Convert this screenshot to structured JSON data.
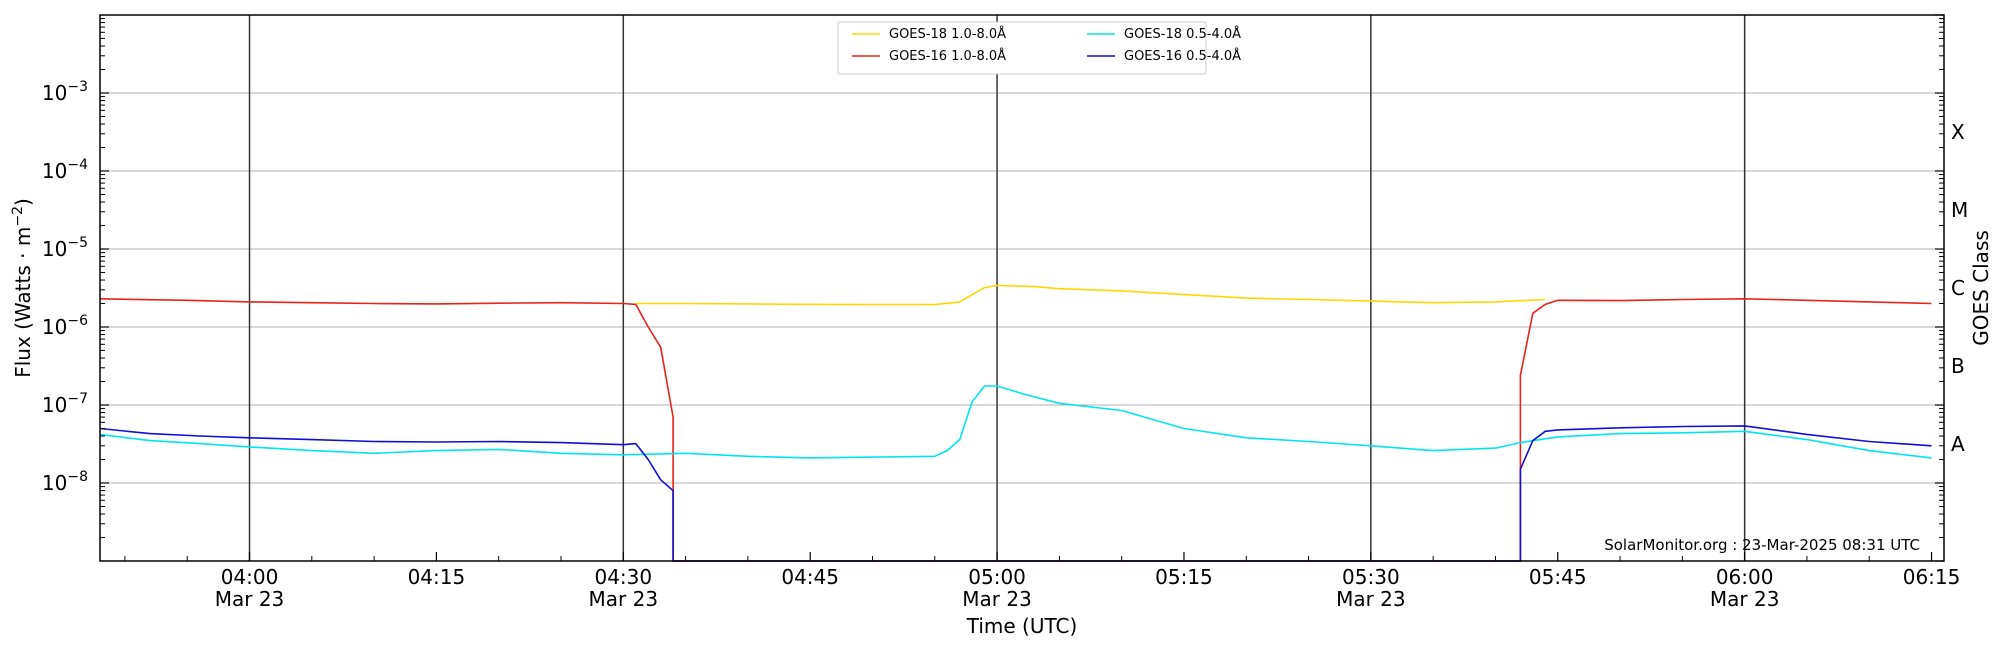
{
  "chart_data": {
    "type": "line",
    "xlabel": "Time (UTC)",
    "ylabel": "Flux (Watts · m",
    "ylabel_sup": "−2",
    "ylabel_close": ")",
    "right_axis_label": "GOES Class",
    "y_scale": "log",
    "ylim": [
      1e-09,
      0.01
    ],
    "xlim": [
      "03:48",
      "06:16"
    ],
    "grid": "horizontal at decades; vertical lines every 30 min",
    "legend_position": "top-center",
    "y_ticks": [
      {
        "base": "10",
        "exp": "−8",
        "value": 1e-08
      },
      {
        "base": "10",
        "exp": "−7",
        "value": 1e-07
      },
      {
        "base": "10",
        "exp": "−6",
        "value": 1e-06
      },
      {
        "base": "10",
        "exp": "−5",
        "value": 1e-05
      },
      {
        "base": "10",
        "exp": "−4",
        "value": 0.0001
      },
      {
        "base": "10",
        "exp": "−3",
        "value": 0.001
      }
    ],
    "x_ticks": [
      {
        "time": "04:00",
        "line1": "04:00",
        "line2": "Mar 23"
      },
      {
        "time": "04:15",
        "line1": "04:15",
        "line2": ""
      },
      {
        "time": "04:30",
        "line1": "04:30",
        "line2": "Mar 23"
      },
      {
        "time": "04:45",
        "line1": "04:45",
        "line2": ""
      },
      {
        "time": "05:00",
        "line1": "05:00",
        "line2": "Mar 23"
      },
      {
        "time": "05:15",
        "line1": "05:15",
        "line2": ""
      },
      {
        "time": "05:30",
        "line1": "05:30",
        "line2": "Mar 23"
      },
      {
        "time": "05:45",
        "line1": "05:45",
        "line2": ""
      },
      {
        "time": "06:00",
        "line1": "06:00",
        "line2": "Mar 23"
      },
      {
        "time": "06:15",
        "line1": "06:15",
        "line2": ""
      }
    ],
    "goes_classes": [
      {
        "label": "A",
        "value": 3.16e-08
      },
      {
        "label": "B",
        "value": 3.16e-07
      },
      {
        "label": "C",
        "value": 3.16e-06
      },
      {
        "label": "M",
        "value": 3.16e-05
      },
      {
        "label": "X",
        "value": 0.000316
      }
    ],
    "series": [
      {
        "name": "GOES-18 1.0-8.0",
        "angstrom": "Å",
        "color": "#ffd700",
        "points": [
          [
            "04:31",
            2e-06
          ],
          [
            "04:35",
            2e-06
          ],
          [
            "04:40",
            1.98e-06
          ],
          [
            "04:45",
            1.95e-06
          ],
          [
            "04:50",
            1.94e-06
          ],
          [
            "04:55",
            1.94e-06
          ],
          [
            "04:57",
            2.1e-06
          ],
          [
            "04:58",
            2.6e-06
          ],
          [
            "04:59",
            3.2e-06
          ],
          [
            "05:00",
            3.4e-06
          ],
          [
            "05:03",
            3.3e-06
          ],
          [
            "05:05",
            3.1e-06
          ],
          [
            "05:10",
            2.9e-06
          ],
          [
            "05:15",
            2.6e-06
          ],
          [
            "05:20",
            2.35e-06
          ],
          [
            "05:25",
            2.25e-06
          ],
          [
            "05:30",
            2.15e-06
          ],
          [
            "05:35",
            2.05e-06
          ],
          [
            "05:40",
            2.1e-06
          ],
          [
            "05:44",
            2.25e-06
          ]
        ]
      },
      {
        "name": "GOES-16 1.0-8.0",
        "angstrom": "Å",
        "color": "#e8221a",
        "points": [
          [
            "03:48",
            2.3e-06
          ],
          [
            "03:55",
            2.2e-06
          ],
          [
            "04:00",
            2.1e-06
          ],
          [
            "04:05",
            2.05e-06
          ],
          [
            "04:10",
            2e-06
          ],
          [
            "04:15",
            1.98e-06
          ],
          [
            "04:20",
            2.02e-06
          ],
          [
            "04:25",
            2.05e-06
          ],
          [
            "04:30",
            2e-06
          ],
          [
            "04:31",
            1.95e-06
          ],
          [
            "04:32",
            1e-06
          ],
          [
            "04:33",
            5.5e-07
          ],
          [
            "04:34",
            7e-08
          ],
          [
            "04:34",
            1e-09
          ],
          [
            "05:42",
            1e-09
          ],
          [
            "05:42",
            2.4e-07
          ],
          [
            "05:43",
            1.5e-06
          ],
          [
            "05:44",
            1.95e-06
          ],
          [
            "05:45",
            2.2e-06
          ],
          [
            "05:50",
            2.18e-06
          ],
          [
            "05:55",
            2.25e-06
          ],
          [
            "06:00",
            2.3e-06
          ],
          [
            "06:05",
            2.2e-06
          ],
          [
            "06:10",
            2.1e-06
          ],
          [
            "06:15",
            2e-06
          ]
        ]
      },
      {
        "name": "GOES-18 0.5-4.0",
        "angstrom": "Å",
        "color": "#00e5ee",
        "points": [
          [
            "03:48",
            4.2e-08
          ],
          [
            "03:52",
            3.5e-08
          ],
          [
            "03:56",
            3.2e-08
          ],
          [
            "04:00",
            2.9e-08
          ],
          [
            "04:05",
            2.6e-08
          ],
          [
            "04:10",
            2.4e-08
          ],
          [
            "04:15",
            2.6e-08
          ],
          [
            "04:20",
            2.7e-08
          ],
          [
            "04:25",
            2.4e-08
          ],
          [
            "04:30",
            2.3e-08
          ],
          [
            "04:35",
            2.4e-08
          ],
          [
            "04:40",
            2.2e-08
          ],
          [
            "04:45",
            2.1e-08
          ],
          [
            "04:50",
            2.15e-08
          ],
          [
            "04:55",
            2.2e-08
          ],
          [
            "04:56",
            2.6e-08
          ],
          [
            "04:57",
            3.6e-08
          ],
          [
            "04:58",
            1.1e-07
          ],
          [
            "04:59",
            1.75e-07
          ],
          [
            "05:00",
            1.75e-07
          ],
          [
            "05:02",
            1.4e-07
          ],
          [
            "05:05",
            1.05e-07
          ],
          [
            "05:10",
            8.5e-08
          ],
          [
            "05:15",
            5e-08
          ],
          [
            "05:20",
            3.8e-08
          ],
          [
            "05:25",
            3.4e-08
          ],
          [
            "05:30",
            3e-08
          ],
          [
            "05:35",
            2.6e-08
          ],
          [
            "05:40",
            2.8e-08
          ],
          [
            "05:42",
            3.3e-08
          ],
          [
            "05:45",
            3.9e-08
          ],
          [
            "05:50",
            4.3e-08
          ],
          [
            "05:55",
            4.4e-08
          ],
          [
            "06:00",
            4.6e-08
          ],
          [
            "06:05",
            3.6e-08
          ],
          [
            "06:10",
            2.6e-08
          ],
          [
            "06:15",
            2.1e-08
          ]
        ]
      },
      {
        "name": "GOES-16 0.5-4.0",
        "angstrom": "Å",
        "color": "#0f0fd6",
        "points": [
          [
            "03:48",
            5e-08
          ],
          [
            "03:52",
            4.3e-08
          ],
          [
            "03:56",
            4e-08
          ],
          [
            "04:00",
            3.8e-08
          ],
          [
            "04:05",
            3.6e-08
          ],
          [
            "04:10",
            3.4e-08
          ],
          [
            "04:15",
            3.35e-08
          ],
          [
            "04:20",
            3.4e-08
          ],
          [
            "04:25",
            3.3e-08
          ],
          [
            "04:30",
            3.1e-08
          ],
          [
            "04:31",
            3.2e-08
          ],
          [
            "04:32",
            2e-08
          ],
          [
            "04:33",
            1.1e-08
          ],
          [
            "04:34",
            8e-09
          ],
          [
            "04:34",
            1e-09
          ],
          [
            "05:42",
            1e-09
          ],
          [
            "05:42",
            1.5e-08
          ],
          [
            "05:43",
            3.5e-08
          ],
          [
            "05:44",
            4.6e-08
          ],
          [
            "05:45",
            4.8e-08
          ],
          [
            "05:50",
            5.1e-08
          ],
          [
            "05:55",
            5.3e-08
          ],
          [
            "06:00",
            5.4e-08
          ],
          [
            "06:05",
            4.2e-08
          ],
          [
            "06:10",
            3.4e-08
          ],
          [
            "06:15",
            3e-08
          ]
        ]
      }
    ],
    "watermark": "SolarMonitor.org : 23-Mar-2025 08:31 UTC"
  }
}
